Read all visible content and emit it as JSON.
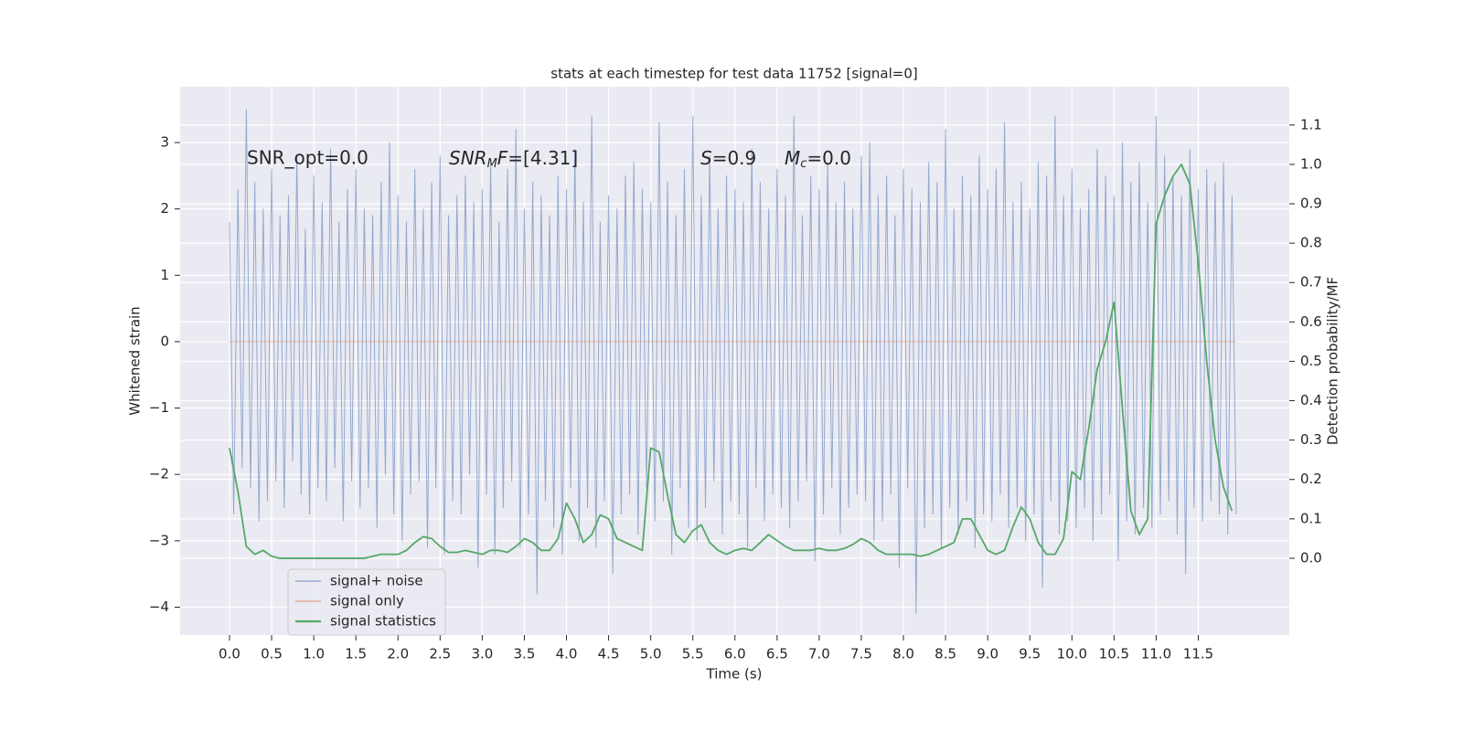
{
  "chart_data": {
    "type": "line",
    "title": "stats at each timestep for test data 11752 [signal=0]",
    "xlabel": "Time (s)",
    "ylabel": "Whitened strain",
    "y2label": "Detection probability/MF",
    "annotations": [
      "SNR_opt=0.0",
      [
        "SNR",
        "M",
        "F",
        "=[4.31]"
      ],
      [
        "S",
        "=0.9"
      ],
      [
        "M",
        "c",
        "=0.0"
      ]
    ],
    "xlim": [
      -0.586,
      12.58
    ],
    "ylim": [
      -4.42,
      3.84
    ],
    "y2lim": [
      -0.195,
      1.197
    ],
    "xticks": [
      {
        "value": 0,
        "label": "0.0"
      },
      0.5,
      {
        "value": 1,
        "label": "1.0"
      },
      1.5,
      {
        "value": 2,
        "label": "2.0"
      },
      2.5,
      {
        "value": 3,
        "label": "3.0"
      },
      3.5,
      {
        "value": 4,
        "label": "4.0"
      },
      4.5,
      {
        "value": 5,
        "label": "5.0"
      },
      5.5,
      {
        "value": 6,
        "label": "6.0"
      },
      6.5,
      {
        "value": 7,
        "label": "7.0"
      },
      7.5,
      {
        "value": 8,
        "label": "8.0"
      },
      8.5,
      {
        "value": 9,
        "label": "9.0"
      },
      9.5,
      {
        "value": 10,
        "label": "10.0"
      },
      10.5,
      {
        "value": 11,
        "label": "11.0"
      },
      11.5
    ],
    "yticks": [
      {
        "value": -4,
        "label": "−4"
      },
      {
        "value": -3,
        "label": "−3"
      },
      {
        "value": -2,
        "label": "−2"
      },
      {
        "value": -1,
        "label": "−1"
      },
      0,
      1,
      2,
      3
    ],
    "y2ticks": [
      {
        "value": 0,
        "label": "0.0"
      },
      0.1,
      0.2,
      0.3,
      0.4,
      0.5,
      0.6,
      0.7,
      0.8,
      0.9,
      {
        "value": 1,
        "label": "1.0"
      },
      1.1
    ],
    "grid": true,
    "legend": "lower left",
    "series": [
      {
        "name": "signal+ noise",
        "color": "#4c72b0",
        "x": [
          0,
          0.05,
          0.1,
          0.15,
          0.2,
          0.25,
          0.3,
          0.35,
          0.4,
          0.45,
          0.5,
          0.55,
          0.6,
          0.65,
          0.7,
          0.75,
          0.8,
          0.85,
          0.9,
          0.95,
          1,
          1.05,
          1.1,
          1.15,
          1.2,
          1.25,
          1.3,
          1.35,
          1.4,
          1.45,
          1.5,
          1.55,
          1.6,
          1.65,
          1.7,
          1.75,
          1.8,
          1.85,
          1.9,
          1.95,
          2,
          2.05,
          2.1,
          2.15,
          2.2,
          2.25,
          2.3,
          2.35,
          2.4,
          2.45,
          2.5,
          2.55,
          2.6,
          2.65,
          2.7,
          2.75,
          2.8,
          2.85,
          2.9,
          2.95,
          3,
          3.05,
          3.1,
          3.15,
          3.2,
          3.25,
          3.3,
          3.35,
          3.4,
          3.45,
          3.5,
          3.55,
          3.6,
          3.65,
          3.7,
          3.75,
          3.8,
          3.85,
          3.9,
          3.95,
          4,
          4.05,
          4.1,
          4.15,
          4.2,
          4.25,
          4.3,
          4.35,
          4.4,
          4.45,
          4.5,
          4.55,
          4.6,
          4.65,
          4.7,
          4.75,
          4.8,
          4.85,
          4.9,
          4.95,
          5,
          5.05,
          5.1,
          5.15,
          5.2,
          5.25,
          5.3,
          5.35,
          5.4,
          5.45,
          5.5,
          5.55,
          5.6,
          5.65,
          5.7,
          5.75,
          5.8,
          5.85,
          5.9,
          5.95,
          6,
          6.05,
          6.1,
          6.15,
          6.2,
          6.25,
          6.3,
          6.35,
          6.4,
          6.45,
          6.5,
          6.55,
          6.6,
          6.65,
          6.7,
          6.75,
          6.8,
          6.85,
          6.9,
          6.95,
          7,
          7.05,
          7.1,
          7.15,
          7.2,
          7.25,
          7.3,
          7.35,
          7.4,
          7.45,
          7.5,
          7.55,
          7.6,
          7.65,
          7.7,
          7.75,
          7.8,
          7.85,
          7.9,
          7.95,
          8,
          8.05,
          8.1,
          8.15,
          8.2,
          8.25,
          8.3,
          8.35,
          8.4,
          8.45,
          8.5,
          8.55,
          8.6,
          8.65,
          8.7,
          8.75,
          8.8,
          8.85,
          8.9,
          8.95,
          9,
          9.05,
          9.1,
          9.15,
          9.2,
          9.25,
          9.3,
          9.35,
          9.4,
          9.45,
          9.5,
          9.55,
          9.6,
          9.65,
          9.7,
          9.75,
          9.8,
          9.85,
          9.9,
          9.95,
          10,
          10.05,
          10.1,
          10.15,
          10.2,
          10.25,
          10.3,
          10.35,
          10.4,
          10.45,
          10.5,
          10.55,
          10.6,
          10.65,
          10.7,
          10.75,
          10.8,
          10.85,
          10.9,
          10.95,
          11,
          11.05,
          11.1,
          11.15,
          11.2,
          11.25,
          11.3,
          11.35,
          11.4,
          11.45,
          11.5,
          11.55,
          11.6,
          11.65,
          11.7,
          11.75,
          11.8,
          11.85,
          11.9,
          11.95
        ],
        "values": [
          1.8,
          -2.6,
          2.3,
          -1.9,
          3.5,
          -2.2,
          2.4,
          -2.7,
          2.0,
          -2.4,
          2.6,
          -2.1,
          1.9,
          -2.5,
          2.2,
          -1.8,
          2.8,
          -2.3,
          1.7,
          -2.6,
          2.5,
          -2.2,
          2.1,
          -2.4,
          2.9,
          -1.9,
          1.8,
          -2.7,
          2.3,
          -2.1,
          2.6,
          -2.5,
          2.0,
          -2.2,
          1.9,
          -2.8,
          2.4,
          -2.0,
          3.0,
          -2.6,
          2.2,
          -3.0,
          1.8,
          -2.3,
          2.6,
          -2.1,
          2.0,
          -3.1,
          2.4,
          -2.2,
          2.8,
          -3.2,
          1.9,
          -2.4,
          2.2,
          -2.6,
          2.5,
          -2.0,
          2.1,
          -3.4,
          2.3,
          -2.3,
          2.7,
          -3.2,
          1.8,
          -2.5,
          2.6,
          -2.1,
          3.2,
          -3.1,
          2.0,
          -2.6,
          2.4,
          -3.8,
          2.2,
          -2.4,
          1.9,
          -2.8,
          2.5,
          -3.2,
          2.3,
          -2.2,
          2.9,
          -3.0,
          2.1,
          -2.5,
          3.4,
          -3.1,
          1.8,
          -2.4,
          2.2,
          -3.5,
          2.0,
          -2.6,
          2.5,
          -2.3,
          2.7,
          -2.9,
          2.3,
          -2.2,
          2.1,
          -2.7,
          3.3,
          -2.4,
          2.4,
          -3.2,
          1.9,
          -2.2,
          2.6,
          -2.8,
          3.4,
          -3.0,
          2.2,
          -2.5,
          2.8,
          -2.1,
          2.0,
          -2.9,
          2.5,
          -2.4,
          2.3,
          -2.6,
          2.1,
          -3.1,
          2.9,
          -2.2,
          2.4,
          -2.7,
          2.0,
          -2.3,
          2.6,
          -2.5,
          2.2,
          -2.8,
          3.4,
          -2.4,
          1.9,
          -2.1,
          2.5,
          -3.3,
          2.3,
          -2.6,
          2.7,
          -2.2,
          2.1,
          -2.9,
          2.4,
          -2.5,
          2.0,
          -2.3,
          2.8,
          -2.4,
          3.0,
          -3.0,
          2.2,
          -2.7,
          2.5,
          -2.3,
          1.9,
          -3.4,
          2.6,
          -2.2,
          2.3,
          -4.1,
          2.1,
          -2.8,
          2.7,
          -2.6,
          2.4,
          -3.1,
          3.2,
          -2.5,
          2.0,
          -2.9,
          2.5,
          -2.4,
          2.2,
          -3.1,
          2.8,
          -2.6,
          2.3,
          -2.7,
          2.6,
          -2.3,
          3.3,
          -2.8,
          2.1,
          -2.5,
          2.4,
          -3.0,
          2.0,
          -2.6,
          2.7,
          -3.7,
          2.5,
          -2.4,
          3.4,
          -2.9,
          2.2,
          -2.7,
          2.6,
          -2.8,
          2.0,
          -2.5,
          2.3,
          -3.0,
          2.9,
          -2.6,
          2.5,
          -2.3,
          2.2,
          -3.3,
          3.0,
          -2.7,
          2.4,
          -2.9,
          2.7,
          -2.5,
          2.1,
          -2.8,
          3.4,
          -2.6,
          2.8,
          -2.4,
          2.5,
          -2.9,
          2.2,
          -3.5,
          2.9,
          -2.5,
          2.3,
          -2.7,
          2.6,
          -2.4,
          2.4,
          -2.6,
          2.7,
          -2.9,
          2.2,
          -2.6
        ]
      },
      {
        "name": "signal only",
        "color": "#dd8452",
        "x": [
          0,
          11.95
        ],
        "values": [
          0,
          0
        ]
      },
      {
        "name": "signal statistics",
        "color": "#55a868",
        "axis": "y2",
        "x": [
          0,
          0.1,
          0.2,
          0.3,
          0.4,
          0.5,
          0.6,
          0.7,
          0.8,
          0.9,
          1,
          1.1,
          1.2,
          1.3,
          1.4,
          1.5,
          1.6,
          1.7,
          1.8,
          1.9,
          2,
          2.1,
          2.2,
          2.3,
          2.4,
          2.5,
          2.6,
          2.7,
          2.8,
          2.9,
          3,
          3.1,
          3.2,
          3.3,
          3.4,
          3.5,
          3.6,
          3.7,
          3.8,
          3.9,
          4,
          4.1,
          4.2,
          4.3,
          4.4,
          4.5,
          4.6,
          4.7,
          4.8,
          4.9,
          5,
          5.1,
          5.2,
          5.3,
          5.4,
          5.5,
          5.6,
          5.7,
          5.8,
          5.9,
          6,
          6.1,
          6.2,
          6.3,
          6.4,
          6.5,
          6.6,
          6.7,
          6.8,
          6.9,
          7,
          7.1,
          7.2,
          7.3,
          7.4,
          7.5,
          7.6,
          7.7,
          7.8,
          7.9,
          8,
          8.1,
          8.2,
          8.3,
          8.4,
          8.5,
          8.6,
          8.7,
          8.8,
          8.9,
          9,
          9.1,
          9.2,
          9.3,
          9.4,
          9.5,
          9.6,
          9.7,
          9.8,
          9.9,
          10,
          10.1,
          10.2,
          10.3,
          10.4,
          10.5,
          10.6,
          10.7,
          10.8,
          10.9,
          11,
          11.1,
          11.2,
          11.3,
          11.4,
          11.5,
          11.6,
          11.7,
          11.8,
          11.9
        ],
        "values": [
          0.28,
          0.17,
          0.03,
          0.01,
          0.02,
          0.005,
          0,
          0,
          0,
          0,
          0,
          0,
          0,
          0,
          0,
          0,
          0,
          0.005,
          0.01,
          0.01,
          0.01,
          0.02,
          0.04,
          0.055,
          0.05,
          0.03,
          0.015,
          0.015,
          0.02,
          0.015,
          0.01,
          0.02,
          0.02,
          0.015,
          0.03,
          0.05,
          0.04,
          0.02,
          0.02,
          0.05,
          0.14,
          0.1,
          0.04,
          0.06,
          0.11,
          0.1,
          0.05,
          0.04,
          0.03,
          0.02,
          0.28,
          0.27,
          0.16,
          0.06,
          0.04,
          0.07,
          0.085,
          0.04,
          0.02,
          0.01,
          0.02,
          0.025,
          0.02,
          0.04,
          0.06,
          0.045,
          0.03,
          0.02,
          0.02,
          0.02,
          0.025,
          0.02,
          0.02,
          0.025,
          0.035,
          0.05,
          0.04,
          0.02,
          0.01,
          0.01,
          0.01,
          0.01,
          0.005,
          0.01,
          0.02,
          0.03,
          0.04,
          0.1,
          0.1,
          0.06,
          0.02,
          0.01,
          0.02,
          0.08,
          0.13,
          0.1,
          0.04,
          0.01,
          0.01,
          0.05,
          0.22,
          0.2,
          0.33,
          0.48,
          0.55,
          0.65,
          0.38,
          0.12,
          0.06,
          0.1,
          0.85,
          0.92,
          0.97,
          1.0,
          0.95,
          0.75,
          0.5,
          0.3,
          0.18,
          0.12
        ]
      }
    ]
  }
}
